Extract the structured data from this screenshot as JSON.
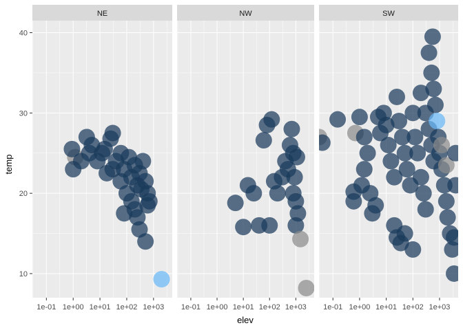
{
  "chart_data": {
    "type": "scatter",
    "facet_var": "region",
    "facets": [
      "NE",
      "NW",
      "SW"
    ],
    "xlabel": "elev",
    "ylabel": "temp",
    "x_scale": "log10",
    "x_ticks": [
      "1e-01",
      "1e+00",
      "1e+01",
      "1e+02",
      "1e+03"
    ],
    "y_ticks": [
      10,
      20,
      30,
      40
    ],
    "xlim": [
      0.03,
      5000
    ],
    "ylim": [
      7,
      41.5
    ],
    "grid": true,
    "legend": "none",
    "colors": {
      "dark": "#1b3a5c",
      "gray": "#8c8c8c",
      "light": "#6ab8f7",
      "panel": "#ebebeb",
      "strip": "#d9d9d9",
      "grid": "#ffffff"
    },
    "panels": [
      {
        "facet": "NE",
        "points": [
          {
            "x": 1.2,
            "y": 24.5,
            "c": "gray"
          },
          {
            "x": 0.9,
            "y": 25.5,
            "c": "dark"
          },
          {
            "x": 1.0,
            "y": 23.0,
            "c": "dark"
          },
          {
            "x": 2.0,
            "y": 24.0,
            "c": "dark"
          },
          {
            "x": 3.2,
            "y": 27.0,
            "c": "dark"
          },
          {
            "x": 5,
            "y": 26.0,
            "c": "dark"
          },
          {
            "x": 4,
            "y": 25.0,
            "c": "dark"
          },
          {
            "x": 8,
            "y": 24.0,
            "c": "dark"
          },
          {
            "x": 12,
            "y": 25.0,
            "c": "dark"
          },
          {
            "x": 18,
            "y": 22.5,
            "c": "dark"
          },
          {
            "x": 25,
            "y": 26.8,
            "c": "dark"
          },
          {
            "x": 30,
            "y": 27.5,
            "c": "dark"
          },
          {
            "x": 40,
            "y": 24.0,
            "c": "dark"
          },
          {
            "x": 60,
            "y": 25.0,
            "c": "dark"
          },
          {
            "x": 80,
            "y": 23.0,
            "c": "dark"
          },
          {
            "x": 120,
            "y": 24.5,
            "c": "dark"
          },
          {
            "x": 150,
            "y": 22.0,
            "c": "dark"
          },
          {
            "x": 200,
            "y": 23.5,
            "c": "dark"
          },
          {
            "x": 250,
            "y": 21.0,
            "c": "dark"
          },
          {
            "x": 300,
            "y": 22.5,
            "c": "dark"
          },
          {
            "x": 400,
            "y": 24.0,
            "c": "dark"
          },
          {
            "x": 500,
            "y": 21.5,
            "c": "dark"
          },
          {
            "x": 600,
            "y": 20.0,
            "c": "dark"
          },
          {
            "x": 700,
            "y": 19.0,
            "c": "dark"
          },
          {
            "x": 100,
            "y": 20.0,
            "c": "dark"
          },
          {
            "x": 150,
            "y": 19.0,
            "c": "dark"
          },
          {
            "x": 80,
            "y": 17.5,
            "c": "dark"
          },
          {
            "x": 200,
            "y": 18.0,
            "c": "dark"
          },
          {
            "x": 250,
            "y": 17.0,
            "c": "dark"
          },
          {
            "x": 300,
            "y": 15.5,
            "c": "dark"
          },
          {
            "x": 500,
            "y": 14.0,
            "c": "dark"
          },
          {
            "x": 600,
            "y": 18.5,
            "c": "dark"
          },
          {
            "x": 60,
            "y": 21.5,
            "c": "dark"
          },
          {
            "x": 30,
            "y": 23.0,
            "c": "dark"
          },
          {
            "x": 15,
            "y": 25.5,
            "c": "dark"
          },
          {
            "x": 350,
            "y": 20.5,
            "c": "dark"
          },
          {
            "x": 2000,
            "y": 9.3,
            "c": "light"
          }
        ]
      },
      {
        "facet": "NW",
        "points": [
          {
            "x": 5,
            "y": 18.8,
            "c": "dark"
          },
          {
            "x": 10,
            "y": 15.8,
            "c": "dark"
          },
          {
            "x": 15,
            "y": 21.0,
            "c": "dark"
          },
          {
            "x": 25,
            "y": 20.0,
            "c": "dark"
          },
          {
            "x": 40,
            "y": 16.0,
            "c": "dark"
          },
          {
            "x": 60,
            "y": 26.6,
            "c": "dark"
          },
          {
            "x": 80,
            "y": 28.5,
            "c": "dark"
          },
          {
            "x": 120,
            "y": 29.2,
            "c": "dark"
          },
          {
            "x": 100,
            "y": 16.0,
            "c": "dark"
          },
          {
            "x": 150,
            "y": 21.5,
            "c": "dark"
          },
          {
            "x": 200,
            "y": 20.0,
            "c": "dark"
          },
          {
            "x": 300,
            "y": 22.0,
            "c": "dark"
          },
          {
            "x": 400,
            "y": 24.0,
            "c": "dark"
          },
          {
            "x": 500,
            "y": 23.0,
            "c": "dark"
          },
          {
            "x": 600,
            "y": 26.0,
            "c": "dark"
          },
          {
            "x": 700,
            "y": 28.0,
            "c": "dark"
          },
          {
            "x": 800,
            "y": 25.0,
            "c": "dark"
          },
          {
            "x": 900,
            "y": 22.0,
            "c": "dark"
          },
          {
            "x": 1000,
            "y": 19.0,
            "c": "dark"
          },
          {
            "x": 1200,
            "y": 17.5,
            "c": "dark"
          },
          {
            "x": 1000,
            "y": 16.0,
            "c": "dark"
          },
          {
            "x": 800,
            "y": 20.0,
            "c": "dark"
          },
          {
            "x": 1100,
            "y": 24.5,
            "c": "dark"
          },
          {
            "x": 1500,
            "y": 14.3,
            "c": "gray"
          },
          {
            "x": 2500,
            "y": 8.2,
            "c": "gray"
          }
        ]
      },
      {
        "facet": "SW",
        "points": [
          {
            "x": 0.03,
            "y": 27.0,
            "c": "gray"
          },
          {
            "x": 0.04,
            "y": 26.3,
            "c": "dark"
          },
          {
            "x": 0.15,
            "y": 29.2,
            "c": "dark"
          },
          {
            "x": 0.7,
            "y": 27.5,
            "c": "gray"
          },
          {
            "x": 0.6,
            "y": 20.2,
            "c": "dark"
          },
          {
            "x": 0.6,
            "y": 19.0,
            "c": "dark"
          },
          {
            "x": 1.0,
            "y": 29.5,
            "c": "dark"
          },
          {
            "x": 1.5,
            "y": 27.0,
            "c": "dark"
          },
          {
            "x": 2.0,
            "y": 25.0,
            "c": "dark"
          },
          {
            "x": 1.5,
            "y": 23.0,
            "c": "dark"
          },
          {
            "x": 1.2,
            "y": 21.0,
            "c": "dark"
          },
          {
            "x": 2.5,
            "y": 20.0,
            "c": "dark"
          },
          {
            "x": 3,
            "y": 17.5,
            "c": "dark"
          },
          {
            "x": 4,
            "y": 18.5,
            "c": "dark"
          },
          {
            "x": 5,
            "y": 29.5,
            "c": "dark"
          },
          {
            "x": 6,
            "y": 27.5,
            "c": "dark"
          },
          {
            "x": 8,
            "y": 30.0,
            "c": "dark"
          },
          {
            "x": 10,
            "y": 28.5,
            "c": "dark"
          },
          {
            "x": 12,
            "y": 26.0,
            "c": "dark"
          },
          {
            "x": 15,
            "y": 24.0,
            "c": "dark"
          },
          {
            "x": 20,
            "y": 22.0,
            "c": "dark"
          },
          {
            "x": 25,
            "y": 32.0,
            "c": "dark"
          },
          {
            "x": 30,
            "y": 29.0,
            "c": "dark"
          },
          {
            "x": 40,
            "y": 27.0,
            "c": "dark"
          },
          {
            "x": 50,
            "y": 25.0,
            "c": "dark"
          },
          {
            "x": 60,
            "y": 23.0,
            "c": "dark"
          },
          {
            "x": 80,
            "y": 21.0,
            "c": "dark"
          },
          {
            "x": 20,
            "y": 16.0,
            "c": "dark"
          },
          {
            "x": 25,
            "y": 14.5,
            "c": "dark"
          },
          {
            "x": 35,
            "y": 13.8,
            "c": "dark"
          },
          {
            "x": 50,
            "y": 15.0,
            "c": "dark"
          },
          {
            "x": 100,
            "y": 13.0,
            "c": "dark"
          },
          {
            "x": 100,
            "y": 30.0,
            "c": "dark"
          },
          {
            "x": 120,
            "y": 27.0,
            "c": "dark"
          },
          {
            "x": 150,
            "y": 25.0,
            "c": "dark"
          },
          {
            "x": 200,
            "y": 22.0,
            "c": "dark"
          },
          {
            "x": 250,
            "y": 20.0,
            "c": "dark"
          },
          {
            "x": 300,
            "y": 18.0,
            "c": "dark"
          },
          {
            "x": 200,
            "y": 32.5,
            "c": "dark"
          },
          {
            "x": 300,
            "y": 30.0,
            "c": "dark"
          },
          {
            "x": 400,
            "y": 28.0,
            "c": "dark"
          },
          {
            "x": 500,
            "y": 26.0,
            "c": "dark"
          },
          {
            "x": 600,
            "y": 24.0,
            "c": "dark"
          },
          {
            "x": 400,
            "y": 37.5,
            "c": "dark"
          },
          {
            "x": 500,
            "y": 35.0,
            "c": "dark"
          },
          {
            "x": 550,
            "y": 39.5,
            "c": "dark"
          },
          {
            "x": 600,
            "y": 33.0,
            "c": "dark"
          },
          {
            "x": 700,
            "y": 31.0,
            "c": "dark"
          },
          {
            "x": 800,
            "y": 29.0,
            "c": "light"
          },
          {
            "x": 900,
            "y": 27.0,
            "c": "dark"
          },
          {
            "x": 1000,
            "y": 25.0,
            "c": "dark"
          },
          {
            "x": 1200,
            "y": 23.0,
            "c": "dark"
          },
          {
            "x": 1500,
            "y": 21.0,
            "c": "dark"
          },
          {
            "x": 1800,
            "y": 19.0,
            "c": "dark"
          },
          {
            "x": 1200,
            "y": 26.0,
            "c": "gray"
          },
          {
            "x": 1800,
            "y": 23.5,
            "c": "gray"
          },
          {
            "x": 2000,
            "y": 17.0,
            "c": "dark"
          },
          {
            "x": 2500,
            "y": 15.0,
            "c": "dark"
          },
          {
            "x": 3000,
            "y": 13.0,
            "c": "dark"
          },
          {
            "x": 3500,
            "y": 14.5,
            "c": "dark"
          },
          {
            "x": 3500,
            "y": 10.0,
            "c": "dark"
          },
          {
            "x": 4000,
            "y": 25.0,
            "c": "dark"
          },
          {
            "x": 4000,
            "y": 21.0,
            "c": "dark"
          }
        ]
      }
    ]
  }
}
